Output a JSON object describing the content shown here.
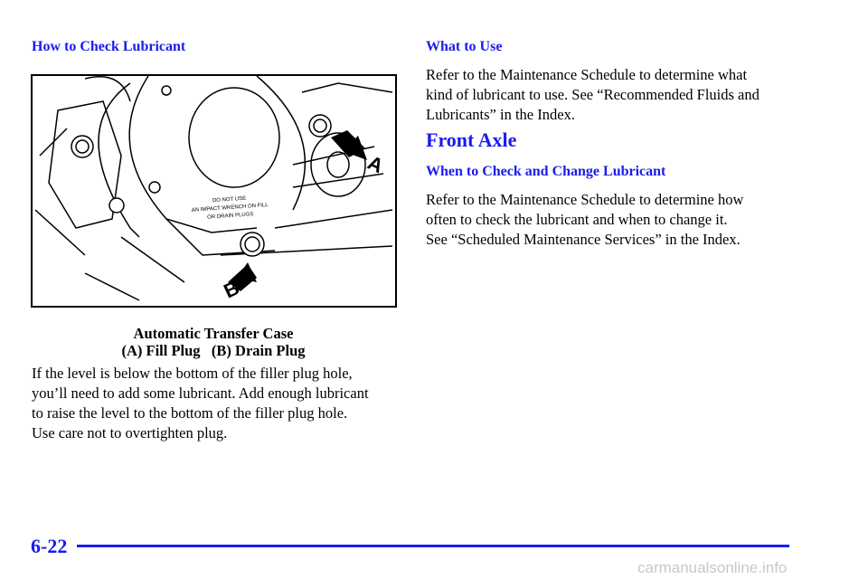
{
  "left": {
    "heading": "How to Check Lubricant",
    "figure": {
      "warning": [
        "DO NOT USE",
        "AN IMPACT WRENCH ON FILL",
        "OR DRAIN PLUGS"
      ],
      "label_a": "A",
      "label_b": "B"
    },
    "caption": [
      "Automatic Transfer Case",
      "(A) Fill Plug   (B) Drain Plug"
    ],
    "paragraph": [
      "If the level is below the bottom of the filler plug hole,",
      "you’ll need to add some lubricant. Add enough lubricant",
      "to raise the level to the bottom of the filler plug hole.",
      "Use care not to overtighten plug."
    ]
  },
  "right": {
    "heading": "What to Use",
    "paragraph1": [
      "Refer to the Maintenance Schedule to determine what",
      "kind of lubricant to use. See “Recommended Fluids and",
      "Lubricants” in the Index."
    ],
    "section_title": "Front Axle",
    "subheading": "When to Check and Change Lubricant",
    "paragraph2": [
      "Refer to the Maintenance Schedule to determine how",
      "often to check the lubricant and when to change it.",
      "See “Scheduled Maintenance Services” in the Index."
    ]
  },
  "footer": {
    "page_number": "6-22",
    "watermark": "carmanualsonline.info"
  }
}
